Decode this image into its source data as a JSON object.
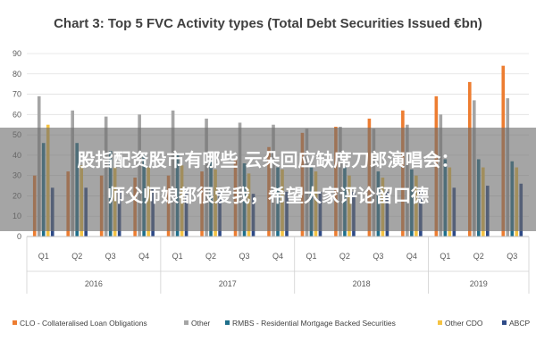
{
  "chart_data": {
    "type": "bar",
    "title": "Chart 3: Top 5 FVC Activity types (Total Debt Securities Issued €bn)",
    "ylim": [
      0,
      90
    ],
    "yticks": [
      0,
      10,
      20,
      30,
      40,
      50,
      60,
      70,
      80,
      90
    ],
    "categories": [
      "Q1",
      "Q2",
      "Q3",
      "Q4",
      "Q1",
      "Q2",
      "Q3",
      "Q4",
      "Q1",
      "Q2",
      "Q3",
      "Q4",
      "Q1",
      "Q2",
      "Q3"
    ],
    "years": [
      {
        "label": "2016",
        "count": 4
      },
      {
        "label": "2017",
        "count": 4
      },
      {
        "label": "2018",
        "count": 4
      },
      {
        "label": "2019",
        "count": 3
      }
    ],
    "series": [
      {
        "name": "CLO - Collateralised Loan Obligations",
        "color": "#ed7d31",
        "values": [
          30,
          32,
          30,
          29,
          30,
          32,
          38,
          44,
          51,
          54,
          58,
          62,
          69,
          76,
          84
        ]
      },
      {
        "name": "Other",
        "color": "#a5a5a5",
        "values": [
          69,
          62,
          59,
          60,
          62,
          58,
          56,
          55,
          53,
          54,
          53,
          55,
          60,
          67,
          68
        ]
      },
      {
        "name": "RMBS - Residential Mortgage Backed Securities",
        "color": "#1f6f8b",
        "values": [
          46,
          46,
          42,
          40,
          40,
          38,
          36,
          34,
          34,
          34,
          32,
          33,
          38,
          38,
          37
        ]
      },
      {
        "name": "Other CDO",
        "color": "#f5c342",
        "values": [
          55,
          35,
          34,
          34,
          35,
          33,
          31,
          33,
          32,
          30,
          29,
          30,
          34,
          34,
          34
        ]
      },
      {
        "name": "ABCP",
        "color": "#2e4a87",
        "values": [
          24,
          24,
          23,
          24,
          23,
          22,
          21,
          22,
          22,
          22,
          22,
          23,
          24,
          25,
          26
        ]
      }
    ]
  },
  "overlay": {
    "line1": "股指配资股市有哪些 云朵回应缺席刀郎演唱会：",
    "line2": "师父师娘都很爱我，希望大家评论留口德"
  }
}
